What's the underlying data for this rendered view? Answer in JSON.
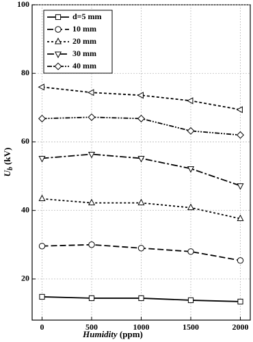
{
  "chart_data": {
    "type": "line",
    "xlabel": {
      "main": "Humidity",
      "unit": "(ppm)"
    },
    "ylabel": {
      "main": "U",
      "sub": "b",
      "unit": "(kV)"
    },
    "x": [
      0,
      500,
      1000,
      1500,
      2000
    ],
    "xlim": [
      -100,
      2100
    ],
    "xticks": [
      0,
      500,
      1000,
      1500,
      2000
    ],
    "ylim": [
      8,
      100
    ],
    "yticks": [
      20,
      40,
      60,
      80,
      100
    ],
    "grid": true,
    "legend": "upper-left",
    "series": [
      {
        "name": "d=5 mm",
        "color": "#000000",
        "marker": "square",
        "dash": "solid",
        "values": [
          14.8,
          14.4,
          14.4,
          13.8,
          13.4
        ]
      },
      {
        "name": "10 mm",
        "color": "#000000",
        "marker": "circle",
        "dash": "dash",
        "values": [
          29.6,
          30.0,
          29.0,
          28.0,
          25.4
        ]
      },
      {
        "name": "20 mm",
        "color": "#000000",
        "marker": "triangle-up",
        "dash": "dot",
        "values": [
          43.4,
          42.2,
          42.2,
          40.8,
          37.6
        ]
      },
      {
        "name": "30 mm",
        "color": "#000000",
        "marker": "triangle-down",
        "dash": "dashdot",
        "values": [
          55.2,
          56.4,
          55.2,
          52.2,
          47.2
        ]
      },
      {
        "name": "40 mm",
        "color": "#000000",
        "marker": "diamond",
        "dash": "dashdotdot",
        "values": [
          66.8,
          67.2,
          66.8,
          63.2,
          62.0
        ]
      },
      {
        "color": "#000000",
        "marker": "triangle-left",
        "dash": "shortdash",
        "values": [
          76.0,
          74.4,
          73.6,
          72.0,
          69.4
        ]
      }
    ]
  }
}
